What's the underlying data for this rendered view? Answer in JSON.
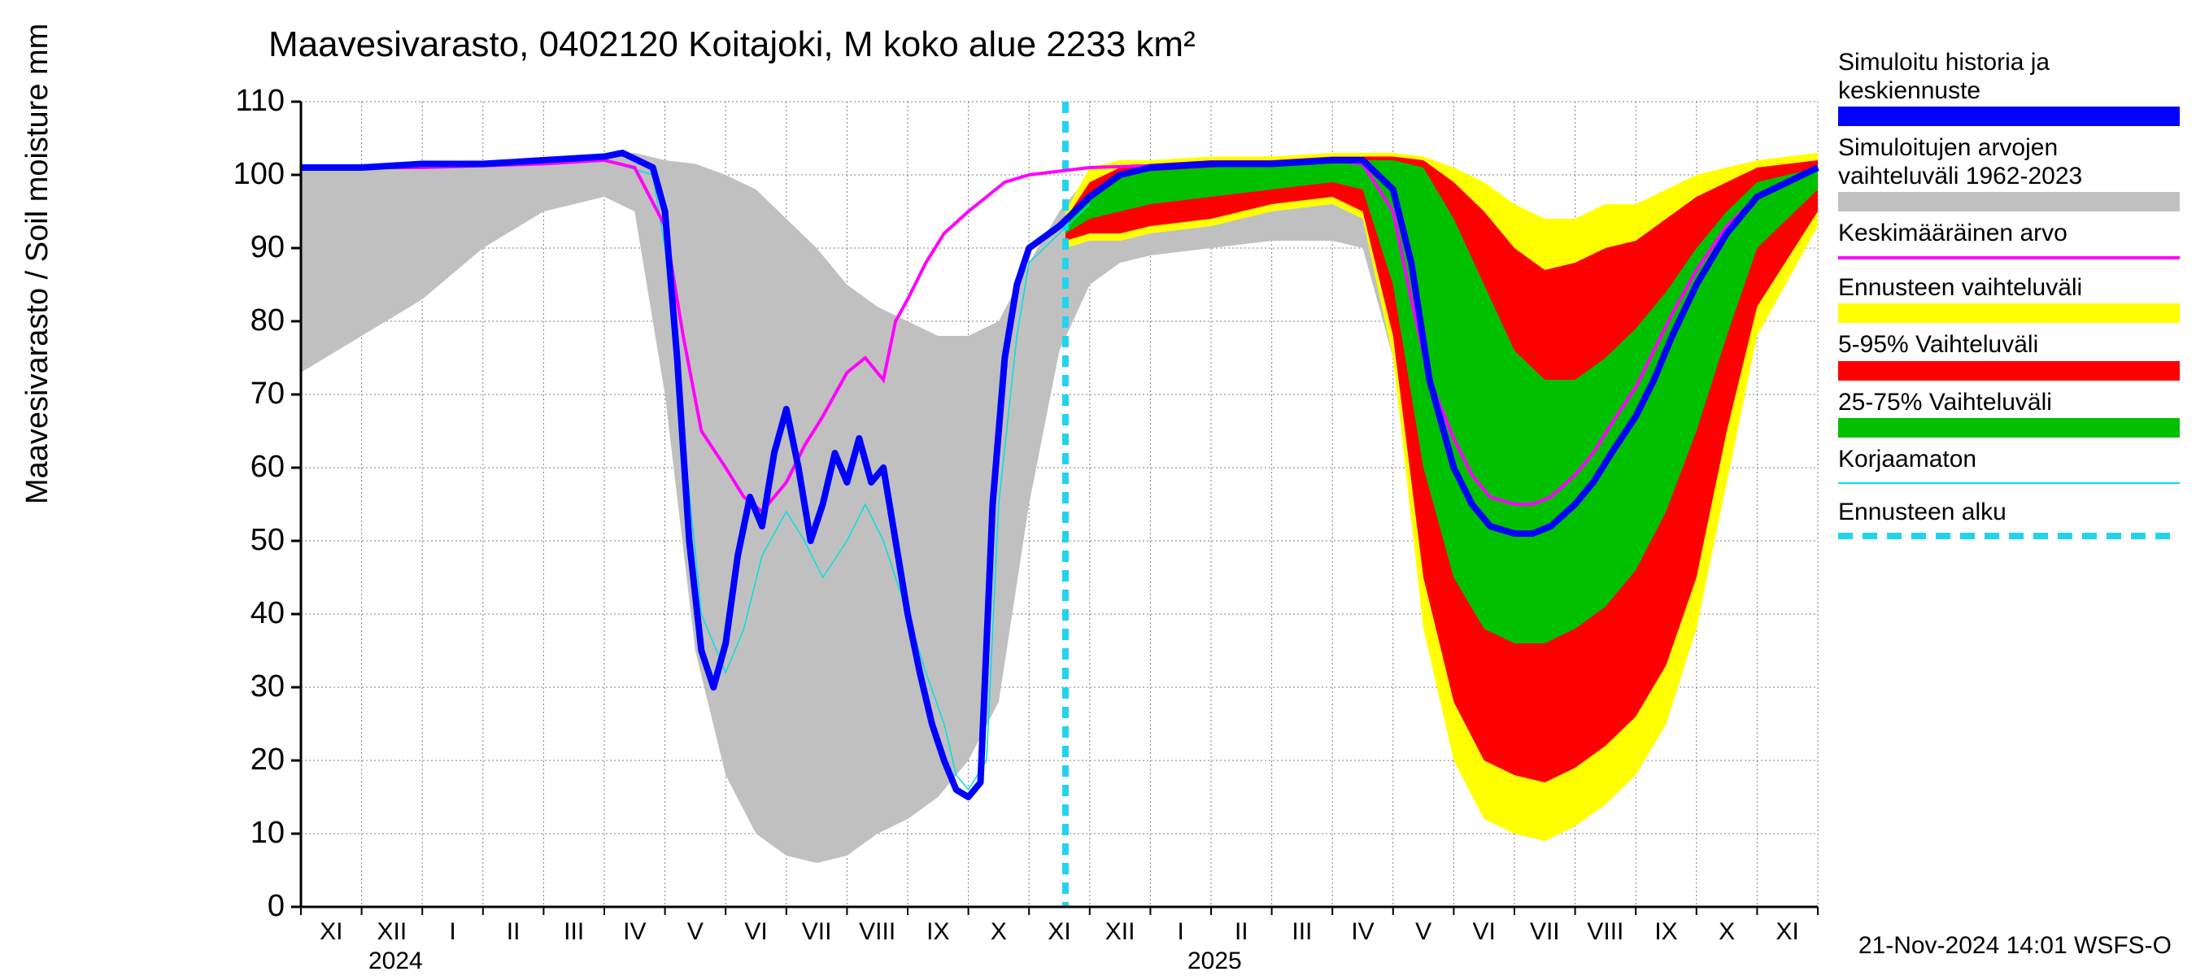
{
  "title": "Maavesivarasto, 0402120 Koitajoki, M koko alue 2233 km²",
  "ylabel": "Maavesivarasto / Soil moisture   mm",
  "footer": "21-Nov-2024 14:01 WSFS-O",
  "years": {
    "y2024": "2024",
    "y2025": "2025"
  },
  "axes": {
    "xlim": [
      0,
      25
    ],
    "ylim": [
      0,
      110
    ],
    "ytick_step": 10,
    "background_color": "#ffffff",
    "grid_color": "#808080",
    "grid_dash": "2 3",
    "axis_color": "#000000"
  },
  "yticks": [
    0,
    10,
    20,
    30,
    40,
    50,
    60,
    70,
    80,
    90,
    100,
    110
  ],
  "xticks": [
    "XI",
    "XII",
    "I",
    "II",
    "III",
    "IV",
    "V",
    "VI",
    "VII",
    "VIII",
    "IX",
    "X",
    "XI",
    "XII",
    "I",
    "II",
    "III",
    "IV",
    "V",
    "VI",
    "VII",
    "VIII",
    "IX",
    "X",
    "XI"
  ],
  "legend": [
    {
      "label": "Simuloitu historia ja keskiennuste",
      "color": "#0000ff",
      "type": "thick"
    },
    {
      "label": "Simuloitujen arvojen vaihteluväli 1962-2023",
      "color": "#c0c0c0",
      "type": "thick"
    },
    {
      "label": "Keskimääräinen arvo",
      "color": "#ff00ff",
      "type": "thin"
    },
    {
      "label": "Ennusteen vaihteluväli",
      "color": "#ffff00",
      "type": "thick"
    },
    {
      "label": "5-95% Vaihteluväli",
      "color": "#ff0000",
      "type": "thick"
    },
    {
      "label": "25-75% Vaihteluväli",
      "color": "#00c000",
      "type": "thick"
    },
    {
      "label": "Korjaamaton",
      "color": "#00e0e0",
      "type": "hairline"
    },
    {
      "label": "Ennusteen alku",
      "color": "#22d3ee",
      "type": "dash"
    }
  ],
  "forecast_start_x": 12.6,
  "series": {
    "gray_band": {
      "color": "#c0c0c0",
      "upper": [
        [
          0,
          101
        ],
        [
          2,
          101.5
        ],
        [
          4,
          102
        ],
        [
          5.5,
          103
        ],
        [
          6,
          102
        ],
        [
          6.5,
          101.5
        ],
        [
          7,
          100
        ],
        [
          7.5,
          98
        ],
        [
          8,
          94
        ],
        [
          8.5,
          90
        ],
        [
          9,
          85
        ],
        [
          9.5,
          82
        ],
        [
          10,
          80
        ],
        [
          10.5,
          78
        ],
        [
          11,
          78
        ],
        [
          11.5,
          80
        ],
        [
          12,
          88
        ],
        [
          12.5,
          95
        ],
        [
          13,
          100
        ],
        [
          14,
          101
        ],
        [
          16,
          101.5
        ],
        [
          17,
          102.5
        ],
        [
          18,
          102
        ],
        [
          18.5,
          102
        ],
        [
          19,
          100
        ],
        [
          19.5,
          95
        ],
        [
          20,
          90
        ],
        [
          20.5,
          85
        ],
        [
          21,
          82
        ],
        [
          21.5,
          80
        ],
        [
          22,
          80
        ],
        [
          22.5,
          83
        ],
        [
          23,
          90
        ],
        [
          23.5,
          97
        ],
        [
          24,
          100
        ],
        [
          25,
          101
        ]
      ],
      "lower": [
        [
          0,
          73
        ],
        [
          1,
          78
        ],
        [
          2,
          83
        ],
        [
          3,
          90
        ],
        [
          4,
          95
        ],
        [
          5,
          97
        ],
        [
          5.5,
          95
        ],
        [
          6,
          70
        ],
        [
          6.5,
          35
        ],
        [
          7,
          18
        ],
        [
          7.5,
          10
        ],
        [
          8,
          7
        ],
        [
          8.5,
          6
        ],
        [
          9,
          7
        ],
        [
          9.5,
          10
        ],
        [
          10,
          12
        ],
        [
          10.5,
          15
        ],
        [
          11,
          20
        ],
        [
          11.5,
          28
        ],
        [
          12,
          55
        ],
        [
          12.5,
          76
        ],
        [
          13,
          85
        ],
        [
          13.5,
          88
        ],
        [
          14,
          89
        ],
        [
          15,
          90
        ],
        [
          16,
          91
        ],
        [
          17,
          91
        ],
        [
          17.5,
          90
        ],
        [
          18,
          75
        ],
        [
          18.5,
          40
        ],
        [
          19,
          22
        ],
        [
          19.5,
          13
        ],
        [
          20,
          10
        ],
        [
          20.5,
          9
        ],
        [
          21,
          12
        ],
        [
          21.5,
          15
        ],
        [
          22,
          18
        ],
        [
          22.5,
          25
        ],
        [
          23,
          38
        ],
        [
          23.5,
          60
        ],
        [
          24,
          82
        ],
        [
          25,
          96
        ]
      ]
    },
    "yellow_band": {
      "color": "#ffff00",
      "upper": [
        [
          12.6,
          95
        ],
        [
          13,
          101
        ],
        [
          13.5,
          102
        ],
        [
          14,
          102
        ],
        [
          15,
          102.5
        ],
        [
          16,
          102.5
        ],
        [
          17,
          103
        ],
        [
          18,
          103
        ],
        [
          18.5,
          102.5
        ],
        [
          19,
          101
        ],
        [
          19.5,
          99
        ],
        [
          20,
          96
        ],
        [
          20.5,
          94
        ],
        [
          21,
          94
        ],
        [
          21.5,
          96
        ],
        [
          22,
          96
        ],
        [
          22.5,
          98
        ],
        [
          23,
          100
        ],
        [
          23.5,
          101
        ],
        [
          24,
          102
        ],
        [
          25,
          103
        ]
      ],
      "lower": [
        [
          12.6,
          90
        ],
        [
          13,
          91
        ],
        [
          13.5,
          91
        ],
        [
          14,
          92
        ],
        [
          15,
          93
        ],
        [
          16,
          95
        ],
        [
          17,
          96
        ],
        [
          17.5,
          94
        ],
        [
          18,
          75
        ],
        [
          18.5,
          38
        ],
        [
          19,
          20
        ],
        [
          19.5,
          12
        ],
        [
          20,
          10
        ],
        [
          20.5,
          9
        ],
        [
          21,
          11
        ],
        [
          21.5,
          14
        ],
        [
          22,
          18
        ],
        [
          22.5,
          25
        ],
        [
          23,
          38
        ],
        [
          23.5,
          58
        ],
        [
          24,
          78
        ],
        [
          25,
          93
        ]
      ]
    },
    "red_band": {
      "color": "#ff0000",
      "upper": [
        [
          12.6,
          94
        ],
        [
          13,
          99
        ],
        [
          13.5,
          101
        ],
        [
          14,
          101.5
        ],
        [
          15,
          102
        ],
        [
          16,
          102
        ],
        [
          17,
          102.5
        ],
        [
          18,
          102.5
        ],
        [
          18.5,
          102
        ],
        [
          19,
          99
        ],
        [
          19.5,
          95
        ],
        [
          20,
          90
        ],
        [
          20.5,
          87
        ],
        [
          21,
          88
        ],
        [
          21.5,
          90
        ],
        [
          22,
          91
        ],
        [
          22.5,
          94
        ],
        [
          23,
          97
        ],
        [
          23.5,
          99
        ],
        [
          24,
          101
        ],
        [
          25,
          102
        ]
      ],
      "lower": [
        [
          12.6,
          91
        ],
        [
          13,
          92
        ],
        [
          13.5,
          92
        ],
        [
          14,
          93
        ],
        [
          15,
          94
        ],
        [
          16,
          96
        ],
        [
          17,
          97
        ],
        [
          17.5,
          95
        ],
        [
          18,
          78
        ],
        [
          18.5,
          45
        ],
        [
          19,
          28
        ],
        [
          19.5,
          20
        ],
        [
          20,
          18
        ],
        [
          20.5,
          17
        ],
        [
          21,
          19
        ],
        [
          21.5,
          22
        ],
        [
          22,
          26
        ],
        [
          22.5,
          33
        ],
        [
          23,
          45
        ],
        [
          23.5,
          65
        ],
        [
          24,
          82
        ],
        [
          25,
          95
        ]
      ]
    },
    "green_band": {
      "color": "#00c000",
      "upper": [
        [
          12.6,
          93
        ],
        [
          13,
          97
        ],
        [
          13.5,
          100
        ],
        [
          14,
          100.5
        ],
        [
          15,
          101
        ],
        [
          16,
          101.5
        ],
        [
          17,
          102
        ],
        [
          18,
          102
        ],
        [
          18.5,
          101
        ],
        [
          19,
          94
        ],
        [
          19.5,
          85
        ],
        [
          20,
          76
        ],
        [
          20.5,
          72
        ],
        [
          21,
          72
        ],
        [
          21.5,
          75
        ],
        [
          22,
          79
        ],
        [
          22.5,
          84
        ],
        [
          23,
          90
        ],
        [
          23.5,
          95
        ],
        [
          24,
          99
        ],
        [
          25,
          101
        ]
      ],
      "lower": [
        [
          12.6,
          92
        ],
        [
          13,
          94
        ],
        [
          13.5,
          95
        ],
        [
          14,
          96
        ],
        [
          15,
          97
        ],
        [
          16,
          98
        ],
        [
          17,
          99
        ],
        [
          17.5,
          98
        ],
        [
          18,
          85
        ],
        [
          18.5,
          60
        ],
        [
          19,
          45
        ],
        [
          19.5,
          38
        ],
        [
          20,
          36
        ],
        [
          20.5,
          36
        ],
        [
          21,
          38
        ],
        [
          21.5,
          41
        ],
        [
          22,
          46
        ],
        [
          22.5,
          54
        ],
        [
          23,
          65
        ],
        [
          23.5,
          78
        ],
        [
          24,
          90
        ],
        [
          25,
          98
        ]
      ]
    },
    "blue_line": {
      "color": "#0000ff",
      "width": 8,
      "points": [
        [
          0,
          101
        ],
        [
          1,
          101
        ],
        [
          2,
          101.5
        ],
        [
          3,
          101.5
        ],
        [
          4,
          102
        ],
        [
          5,
          102.5
        ],
        [
          5.3,
          103
        ],
        [
          5.8,
          101
        ],
        [
          6,
          95
        ],
        [
          6.2,
          75
        ],
        [
          6.4,
          50
        ],
        [
          6.6,
          35
        ],
        [
          6.8,
          30
        ],
        [
          7,
          36
        ],
        [
          7.2,
          48
        ],
        [
          7.4,
          56
        ],
        [
          7.6,
          52
        ],
        [
          7.8,
          62
        ],
        [
          8,
          68
        ],
        [
          8.2,
          60
        ],
        [
          8.4,
          50
        ],
        [
          8.6,
          55
        ],
        [
          8.8,
          62
        ],
        [
          9,
          58
        ],
        [
          9.2,
          64
        ],
        [
          9.4,
          58
        ],
        [
          9.6,
          60
        ],
        [
          9.8,
          50
        ],
        [
          10,
          40
        ],
        [
          10.2,
          32
        ],
        [
          10.4,
          25
        ],
        [
          10.6,
          20
        ],
        [
          10.8,
          16
        ],
        [
          11,
          15
        ],
        [
          11.2,
          17
        ],
        [
          11.4,
          55
        ],
        [
          11.6,
          75
        ],
        [
          11.8,
          85
        ],
        [
          12,
          90
        ],
        [
          12.5,
          93
        ],
        [
          13,
          97
        ],
        [
          13.5,
          100
        ],
        [
          14,
          101
        ],
        [
          15,
          101.5
        ],
        [
          16,
          101.5
        ],
        [
          17,
          102
        ],
        [
          17.5,
          102
        ],
        [
          18,
          98
        ],
        [
          18.3,
          88
        ],
        [
          18.6,
          72
        ],
        [
          19,
          60
        ],
        [
          19.3,
          55
        ],
        [
          19.6,
          52
        ],
        [
          20,
          51
        ],
        [
          20.3,
          51
        ],
        [
          20.6,
          52
        ],
        [
          21,
          55
        ],
        [
          21.3,
          58
        ],
        [
          21.6,
          62
        ],
        [
          22,
          67
        ],
        [
          22.3,
          72
        ],
        [
          22.6,
          78
        ],
        [
          23,
          85
        ],
        [
          23.5,
          92
        ],
        [
          24,
          97
        ],
        [
          25,
          101
        ]
      ]
    },
    "magenta_line": {
      "color": "#ff00ff",
      "width": 4,
      "points": [
        [
          0,
          101
        ],
        [
          2,
          101
        ],
        [
          4,
          101.5
        ],
        [
          5,
          102
        ],
        [
          5.5,
          101
        ],
        [
          6,
          93
        ],
        [
          6.3,
          78
        ],
        [
          6.6,
          65
        ],
        [
          7,
          60
        ],
        [
          7.3,
          56
        ],
        [
          7.6,
          54
        ],
        [
          8,
          58
        ],
        [
          8.3,
          63
        ],
        [
          8.6,
          67
        ],
        [
          9,
          73
        ],
        [
          9.3,
          75
        ],
        [
          9.6,
          72
        ],
        [
          9.8,
          80
        ],
        [
          10,
          83
        ],
        [
          10.3,
          88
        ],
        [
          10.6,
          92
        ],
        [
          11,
          95
        ],
        [
          11.3,
          97
        ],
        [
          11.6,
          99
        ],
        [
          12,
          100
        ],
        [
          13,
          101
        ],
        [
          15,
          101.5
        ],
        [
          16,
          101.5
        ],
        [
          17,
          102
        ],
        [
          17.5,
          101.5
        ],
        [
          18,
          95
        ],
        [
          18.3,
          83
        ],
        [
          18.6,
          72
        ],
        [
          19,
          64
        ],
        [
          19.3,
          59
        ],
        [
          19.6,
          56
        ],
        [
          20,
          55
        ],
        [
          20.3,
          55
        ],
        [
          20.6,
          56
        ],
        [
          21,
          59
        ],
        [
          21.3,
          62
        ],
        [
          21.6,
          66
        ],
        [
          22,
          71
        ],
        [
          22.3,
          76
        ],
        [
          22.6,
          81
        ],
        [
          23,
          87
        ],
        [
          23.5,
          93
        ],
        [
          24,
          97
        ],
        [
          25,
          101
        ]
      ]
    },
    "cyan_line": {
      "color": "#00e0e0",
      "width": 1.5,
      "points": [
        [
          0,
          101
        ],
        [
          5,
          102
        ],
        [
          5.8,
          100
        ],
        [
          6,
          90
        ],
        [
          6.3,
          65
        ],
        [
          6.6,
          40
        ],
        [
          7,
          32
        ],
        [
          7.3,
          38
        ],
        [
          7.6,
          48
        ],
        [
          8,
          54
        ],
        [
          8.3,
          50
        ],
        [
          8.6,
          45
        ],
        [
          9,
          50
        ],
        [
          9.3,
          55
        ],
        [
          9.6,
          50
        ],
        [
          10,
          40
        ],
        [
          10.3,
          32
        ],
        [
          10.6,
          25
        ],
        [
          10.8,
          18
        ],
        [
          11,
          16
        ],
        [
          11.3,
          20
        ],
        [
          11.5,
          55
        ],
        [
          11.8,
          78
        ],
        [
          12,
          88
        ],
        [
          12.5,
          92
        ],
        [
          13,
          96
        ]
      ]
    }
  }
}
